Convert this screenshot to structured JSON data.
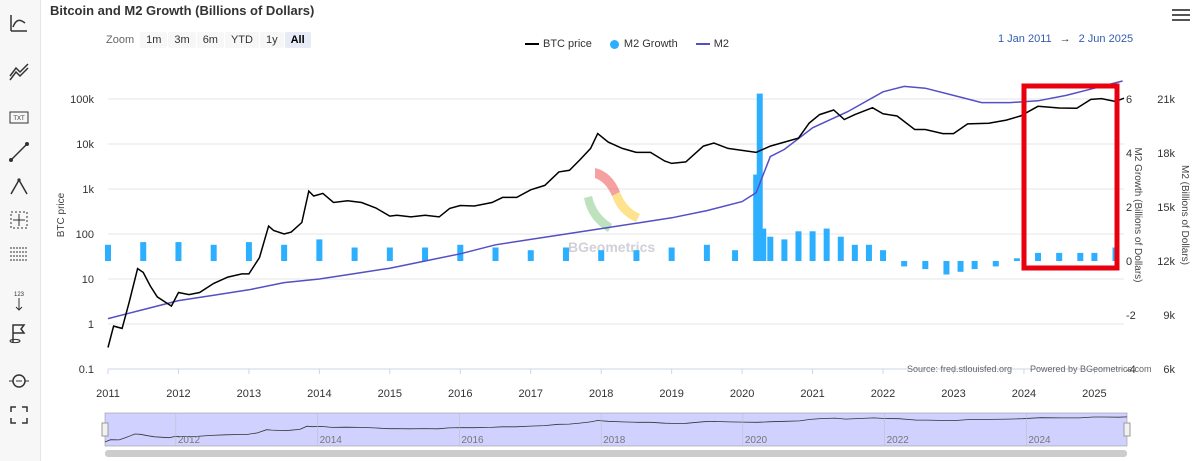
{
  "title": "Bitcoin and M2 Growth (Billions of Dollars)",
  "zoom": {
    "label": "Zoom",
    "buttons": [
      "1m",
      "3m",
      "6m",
      "YTD",
      "1y",
      "All"
    ],
    "active": "All"
  },
  "legend": [
    {
      "name": "BTC price",
      "color": "#000000",
      "style": "line"
    },
    {
      "name": "M2 Growth",
      "color": "#2caffe",
      "style": "dot"
    },
    {
      "name": "M2",
      "color": "#544fc5",
      "style": "line"
    }
  ],
  "date_range": {
    "from": "1 Jan 2011",
    "arrow": "→",
    "to": "2 Jun 2025"
  },
  "sidebar_icons": [
    "indicators-icon",
    "comparison-icon",
    "text-annotation-icon",
    "line-drawing-icon",
    "measure-icon",
    "crosshair-icon",
    "table-icon",
    "vertical-counter-icon",
    "flag-icon",
    "zoom-icon",
    "fullscreen-icon"
  ],
  "credits": {
    "source": "Source: fred.stlouisfed.org",
    "powered": "Powered by BGeometrics.com"
  },
  "watermark": "BGeometrics",
  "colors": {
    "btc": "#000000",
    "m2_growth": "#2caffe",
    "m2": "#544fc5",
    "highlight": "#e8000e",
    "navigator_fill": "#ccccff"
  },
  "chart_data": {
    "type": "line",
    "title": "Bitcoin and M2 Growth (Billions of Dollars)",
    "x_axis": {
      "ticks": [
        "2011",
        "2012",
        "2013",
        "2014",
        "2015",
        "2016",
        "2017",
        "2018",
        "2019",
        "2020",
        "2021",
        "2022",
        "2023",
        "2024",
        "2025"
      ],
      "range": [
        2011.0,
        2025.42
      ]
    },
    "y_axes": [
      {
        "id": "btc",
        "title": "BTC price",
        "scale": "log",
        "range": [
          0.1,
          100000
        ],
        "ticks": [
          "0.1",
          "1",
          "10",
          "100",
          "1k",
          "10k",
          "100k"
        ],
        "side": "left"
      },
      {
        "id": "growth",
        "title": "M2 Growth (Billions of Dollars)",
        "scale": "linear",
        "range": [
          -4,
          6
        ],
        "ticks": [
          "-4",
          "-2",
          "0",
          "2",
          "4",
          "6"
        ],
        "side": "right"
      },
      {
        "id": "m2",
        "title": "M2 (Billions of Dollars)",
        "scale": "linear",
        "range": [
          6000,
          21000
        ],
        "ticks": [
          "6k",
          "9k",
          "12k",
          "15k",
          "18k",
          "21k"
        ],
        "side": "right"
      }
    ],
    "series": [
      {
        "name": "BTC price",
        "axis": "btc",
        "type": "line",
        "x": [
          2011.0,
          2011.08,
          2011.2,
          2011.3,
          2011.42,
          2011.5,
          2011.6,
          2011.7,
          2011.9,
          2012.0,
          2012.15,
          2012.3,
          2012.5,
          2012.7,
          2012.9,
          2013.0,
          2013.15,
          2013.28,
          2013.35,
          2013.5,
          2013.6,
          2013.75,
          2013.85,
          2013.92,
          2014.05,
          2014.2,
          2014.4,
          2014.6,
          2014.8,
          2015.0,
          2015.1,
          2015.3,
          2015.5,
          2015.7,
          2015.85,
          2016.0,
          2016.2,
          2016.45,
          2016.6,
          2016.8,
          2017.0,
          2017.2,
          2017.4,
          2017.55,
          2017.7,
          2017.85,
          2017.95,
          2018.1,
          2018.3,
          2018.5,
          2018.7,
          2018.9,
          2019.0,
          2019.2,
          2019.45,
          2019.6,
          2019.8,
          2020.0,
          2020.2,
          2020.4,
          2020.6,
          2020.8,
          2020.95,
          2021.1,
          2021.3,
          2021.45,
          2021.6,
          2021.85,
          2022.0,
          2022.2,
          2022.45,
          2022.6,
          2022.85,
          2023.0,
          2023.2,
          2023.5,
          2023.75,
          2023.95,
          2024.2,
          2024.5,
          2024.75,
          2024.95,
          2025.1,
          2025.3,
          2025.42
        ],
        "values": [
          0.3,
          0.9,
          0.8,
          3,
          17,
          14,
          7,
          4,
          2.5,
          5,
          4.5,
          5,
          8,
          11,
          13,
          13,
          30,
          150,
          120,
          100,
          110,
          180,
          900,
          700,
          800,
          500,
          550,
          500,
          380,
          250,
          260,
          240,
          260,
          240,
          370,
          430,
          420,
          500,
          650,
          650,
          960,
          1200,
          2400,
          2600,
          4500,
          8000,
          17000,
          11000,
          8000,
          6500,
          6500,
          4200,
          3700,
          4000,
          9000,
          10500,
          8000,
          7200,
          6500,
          9000,
          11000,
          13500,
          29000,
          45000,
          57000,
          35000,
          45000,
          64000,
          47000,
          42000,
          21000,
          21000,
          17000,
          17000,
          28000,
          29000,
          34000,
          42000,
          69000,
          63000,
          62000,
          98000,
          102000,
          88000,
          104000
        ]
      },
      {
        "name": "M2 Growth",
        "axis": "growth",
        "type": "bar",
        "x": [
          2011.0,
          2011.5,
          2012.0,
          2012.5,
          2013.0,
          2013.5,
          2014.0,
          2014.5,
          2015.0,
          2015.5,
          2016.0,
          2016.5,
          2017.0,
          2017.5,
          2018.0,
          2018.5,
          2019.0,
          2019.5,
          2019.9,
          2020.2,
          2020.25,
          2020.3,
          2020.4,
          2020.6,
          2020.8,
          2021.0,
          2021.2,
          2021.4,
          2021.6,
          2021.8,
          2022.0,
          2022.3,
          2022.6,
          2022.9,
          2023.1,
          2023.3,
          2023.6,
          2023.9,
          2024.2,
          2024.5,
          2024.8,
          2025.0,
          2025.3
        ],
        "values": [
          0.6,
          0.7,
          0.7,
          0.6,
          0.7,
          0.6,
          0.8,
          0.5,
          0.5,
          0.5,
          0.6,
          0.5,
          0.4,
          0.5,
          0.4,
          0.4,
          0.5,
          0.6,
          0.4,
          3.2,
          6.2,
          1.2,
          0.9,
          0.8,
          1.1,
          1.1,
          1.2,
          0.9,
          0.6,
          0.6,
          0.4,
          -0.2,
          -0.3,
          -0.5,
          -0.4,
          -0.3,
          -0.2,
          0.1,
          0.3,
          0.3,
          0.3,
          0.3,
          0.5
        ]
      },
      {
        "name": "M2",
        "axis": "m2",
        "type": "line",
        "x": [
          2011.0,
          2011.5,
          2012.0,
          2012.5,
          2013.0,
          2013.5,
          2014.0,
          2014.5,
          2015.0,
          2015.5,
          2016.0,
          2016.5,
          2017.0,
          2017.5,
          2018.0,
          2018.5,
          2019.0,
          2019.5,
          2020.0,
          2020.2,
          2020.4,
          2020.6,
          2021.0,
          2021.5,
          2022.0,
          2022.3,
          2022.6,
          2023.0,
          2023.4,
          2023.8,
          2024.2,
          2024.6,
          2025.0,
          2025.4
        ],
        "values": [
          8800,
          9300,
          9800,
          10100,
          10400,
          10800,
          11000,
          11300,
          11600,
          12000,
          12400,
          12900,
          13200,
          13500,
          13800,
          14100,
          14400,
          14800,
          15300,
          15800,
          17800,
          18200,
          19400,
          20300,
          21400,
          21700,
          21600,
          21200,
          20800,
          20800,
          20900,
          21200,
          21600,
          22000
        ]
      }
    ]
  }
}
